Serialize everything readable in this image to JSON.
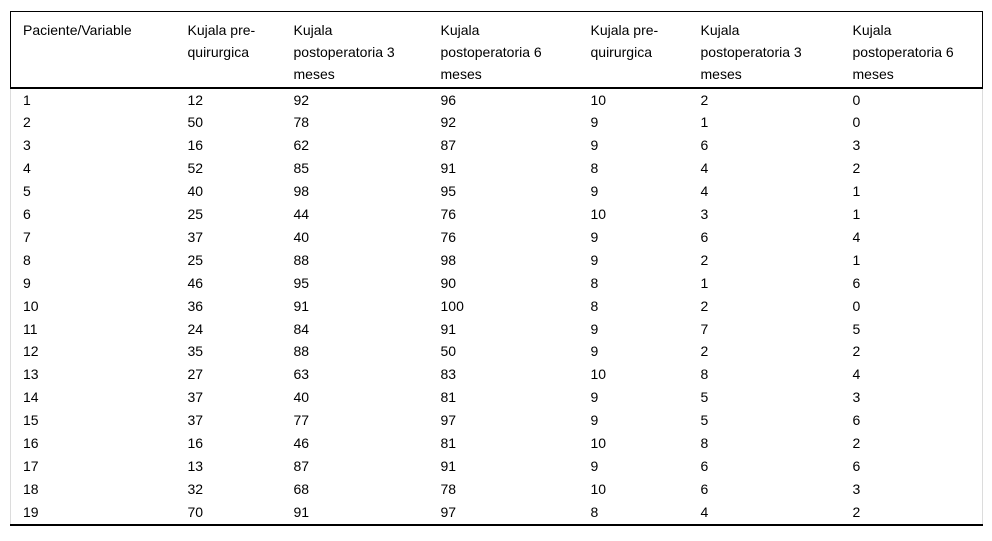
{
  "chart_data": {
    "type": "table",
    "columns": [
      "Paciente/Variable",
      "Kujala pre-quirurgica",
      "Kujala postoperatoria 3 meses",
      "Kujala postoperatoria 6 meses",
      "Kujala pre-quirurgica",
      "Kujala postoperatoria 3 meses",
      "Kujala postoperatoria 6 meses"
    ],
    "rows": [
      [
        1,
        12,
        92,
        96,
        10,
        2,
        0
      ],
      [
        2,
        50,
        78,
        92,
        9,
        1,
        0
      ],
      [
        3,
        16,
        62,
        87,
        9,
        6,
        3
      ],
      [
        4,
        52,
        85,
        91,
        8,
        4,
        2
      ],
      [
        5,
        40,
        98,
        95,
        9,
        4,
        1
      ],
      [
        6,
        25,
        44,
        76,
        10,
        3,
        1
      ],
      [
        7,
        37,
        40,
        76,
        9,
        6,
        4
      ],
      [
        8,
        25,
        88,
        98,
        9,
        2,
        1
      ],
      [
        9,
        46,
        95,
        90,
        8,
        1,
        6
      ],
      [
        10,
        36,
        91,
        100,
        8,
        2,
        0
      ],
      [
        11,
        24,
        84,
        91,
        9,
        7,
        5
      ],
      [
        12,
        35,
        88,
        50,
        9,
        2,
        2
      ],
      [
        13,
        27,
        63,
        83,
        10,
        8,
        4
      ],
      [
        14,
        37,
        40,
        81,
        9,
        5,
        3
      ],
      [
        15,
        37,
        77,
        97,
        9,
        5,
        6
      ],
      [
        16,
        16,
        46,
        81,
        10,
        8,
        2
      ],
      [
        17,
        13,
        87,
        91,
        9,
        6,
        6
      ],
      [
        18,
        32,
        68,
        78,
        10,
        6,
        3
      ],
      [
        19,
        70,
        91,
        97,
        8,
        4,
        2
      ]
    ],
    "layout": {
      "grid": "horizontal rules only: top rule, thick rule under header, thick bottom rule",
      "legend_position": "none"
    }
  },
  "colors": {
    "border_strong": "#000000",
    "border_light": "#dcdcdc",
    "text": "#000000",
    "background": "#ffffff"
  }
}
